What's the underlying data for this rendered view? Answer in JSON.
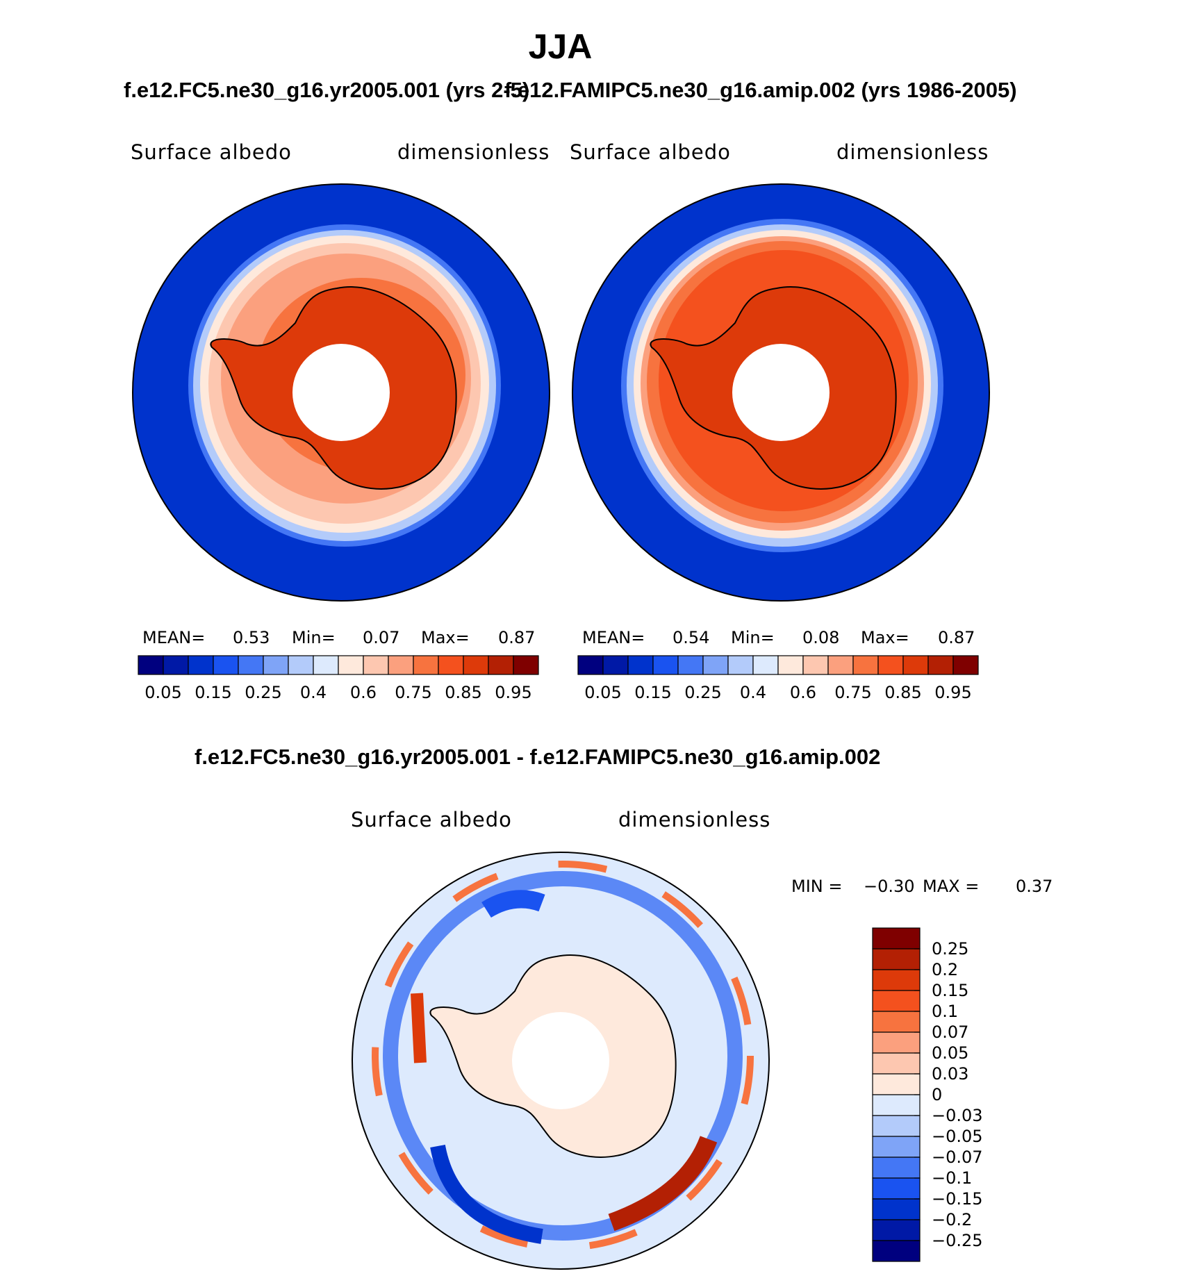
{
  "title": "JJA",
  "panels": [
    {
      "subtitle": "f.e12.FC5.ne30_g16.yr2005.001 (yrs 2-5)",
      "left_label": "Surface albedo",
      "right_label": "dimensionless",
      "mean_label": "MEAN=",
      "mean_value": "0.53",
      "min_label": "Min=",
      "min_value": "0.07",
      "max_label": "Max=",
      "max_value": "0.87"
    },
    {
      "subtitle": "f.e12.FAMIPC5.ne30_g16.amip.002 (yrs 1986-2005)",
      "left_label": "Surface albedo",
      "right_label": "dimensionless",
      "mean_label": "MEAN=",
      "mean_value": "0.54",
      "min_label": "Min=",
      "min_value": "0.08",
      "max_label": "Max=",
      "max_value": "0.87"
    }
  ],
  "diff": {
    "subtitle": "f.e12.FC5.ne30_g16.yr2005.001 - f.e12.FAMIPC5.ne30_g16.amip.002",
    "left_label": "Surface albedo",
    "right_label": "dimensionless",
    "min_label": "MIN =",
    "min_value": "−0.30",
    "max_label": "MAX =",
    "max_value": "0.37"
  },
  "colorbar_top": {
    "colors": [
      "#00007f",
      "#0019a6",
      "#0033cc",
      "#1a53f0",
      "#4477f5",
      "#7fa4f7",
      "#b3cbfa",
      "#ddeafd",
      "#fee9dc",
      "#fdc7b0",
      "#fba07e",
      "#f7733f",
      "#f4511e",
      "#dd3a0a",
      "#b32004",
      "#7f0000"
    ],
    "tick_labels": [
      "0.05",
      "0.15",
      "0.25",
      "0.4",
      "0.6",
      "0.75",
      "0.85",
      "0.95"
    ]
  },
  "colorbar_diff": {
    "colors": [
      "#7f0000",
      "#b32004",
      "#dd3a0a",
      "#f4511e",
      "#f7733f",
      "#fba07e",
      "#fdc7b0",
      "#fee9dc",
      "#ddeafd",
      "#b3cbfa",
      "#7fa4f7",
      "#4477f5",
      "#1a53f0",
      "#0033cc",
      "#0019a6",
      "#00007f"
    ],
    "tick_labels": [
      "0.25",
      "0.2",
      "0.15",
      "0.1",
      "0.07",
      "0.05",
      "0.03",
      "0",
      "−0.03",
      "−0.05",
      "−0.07",
      "−0.1",
      "−0.15",
      "−0.2",
      "−0.25"
    ]
  }
}
